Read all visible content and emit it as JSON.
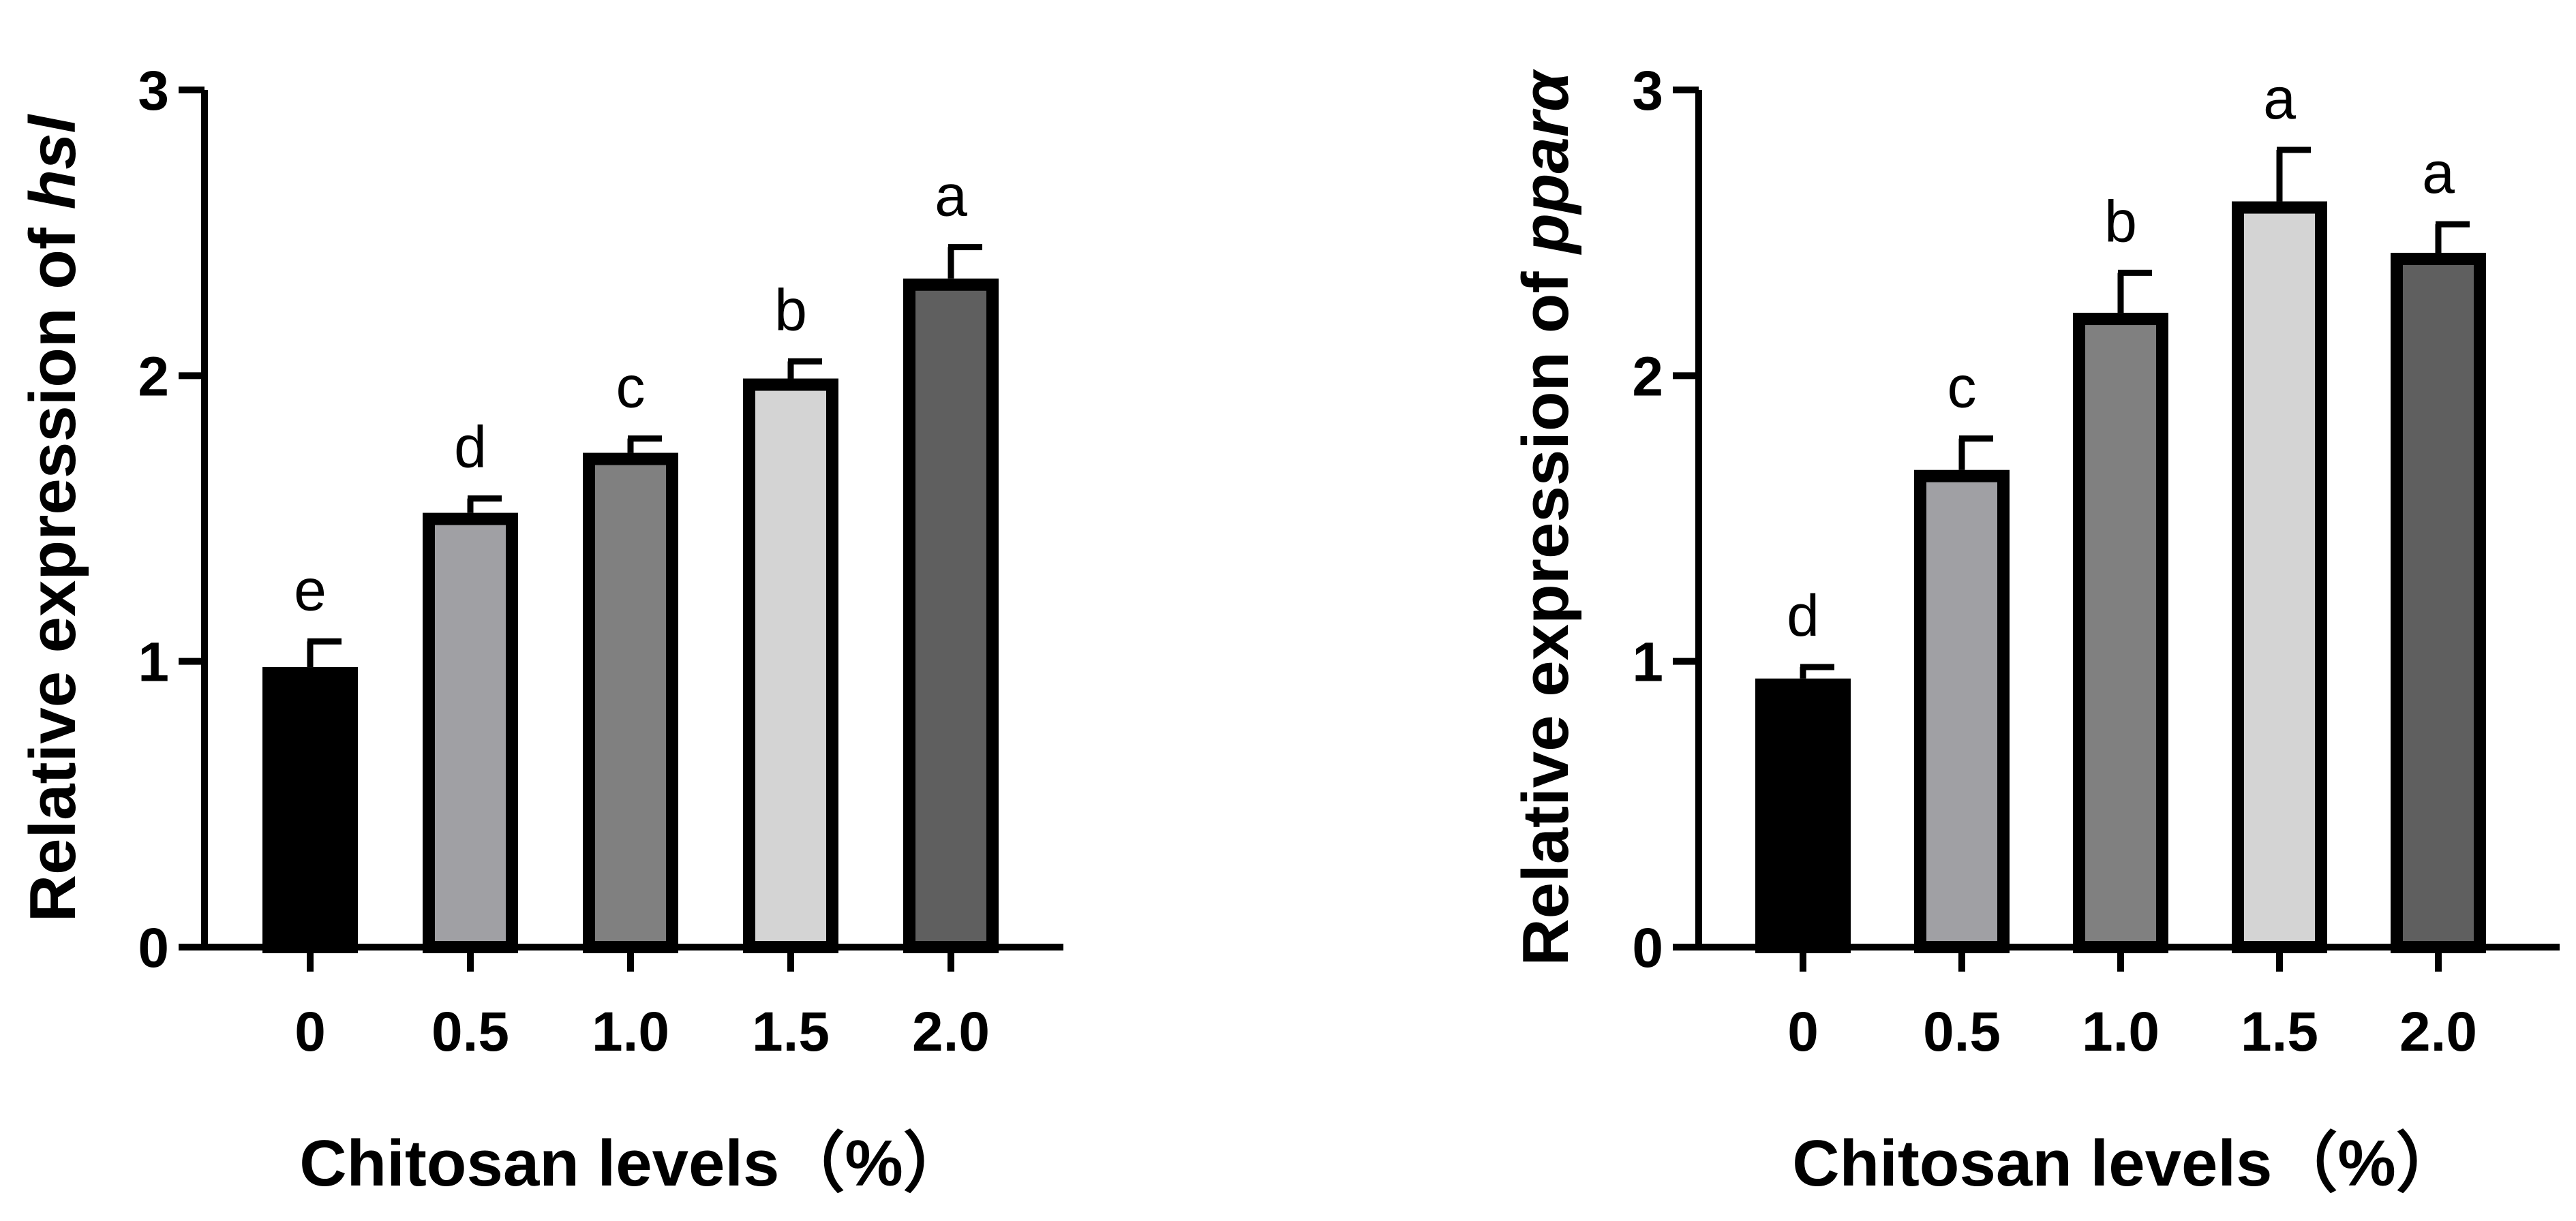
{
  "chart_data": [
    {
      "type": "bar",
      "xlabel": "Chitosan levels（%）",
      "ylabel": "Relative expression of ",
      "ylabel_gene": "hsl",
      "categories": [
        "0",
        "0.5",
        "1.0",
        "1.5",
        "2.0"
      ],
      "values": [
        0.98,
        1.52,
        1.73,
        1.99,
        2.34
      ],
      "errors": [
        0.09,
        0.05,
        0.05,
        0.06,
        0.11
      ],
      "significance": [
        "e",
        "d",
        "c",
        "b",
        "a"
      ],
      "colors": [
        "#000000",
        "#a0a0a4",
        "#808080",
        "#d4d4d4",
        "#5f5f5f"
      ],
      "yticks": [
        "0",
        "1",
        "2",
        "3"
      ],
      "ylim": [
        0,
        3
      ],
      "grid": false,
      "legend": "none"
    },
    {
      "type": "bar",
      "xlabel": "Chitosan levels（%）",
      "ylabel": "Relative expression of ",
      "ylabel_gene": "pparα",
      "categories": [
        "0",
        "0.5",
        "1.0",
        "1.5",
        "2.0"
      ],
      "values": [
        0.94,
        1.67,
        2.22,
        2.61,
        2.43
      ],
      "errors": [
        0.04,
        0.11,
        0.14,
        0.18,
        0.1
      ],
      "significance": [
        "d",
        "c",
        "b",
        "a",
        "a"
      ],
      "colors": [
        "#000000",
        "#a0a0a4",
        "#808080",
        "#d4d4d4",
        "#5f5f5f"
      ],
      "yticks": [
        "0",
        "1",
        "2",
        "3"
      ],
      "ylim": [
        0,
        3
      ],
      "grid": false,
      "legend": "none"
    }
  ]
}
